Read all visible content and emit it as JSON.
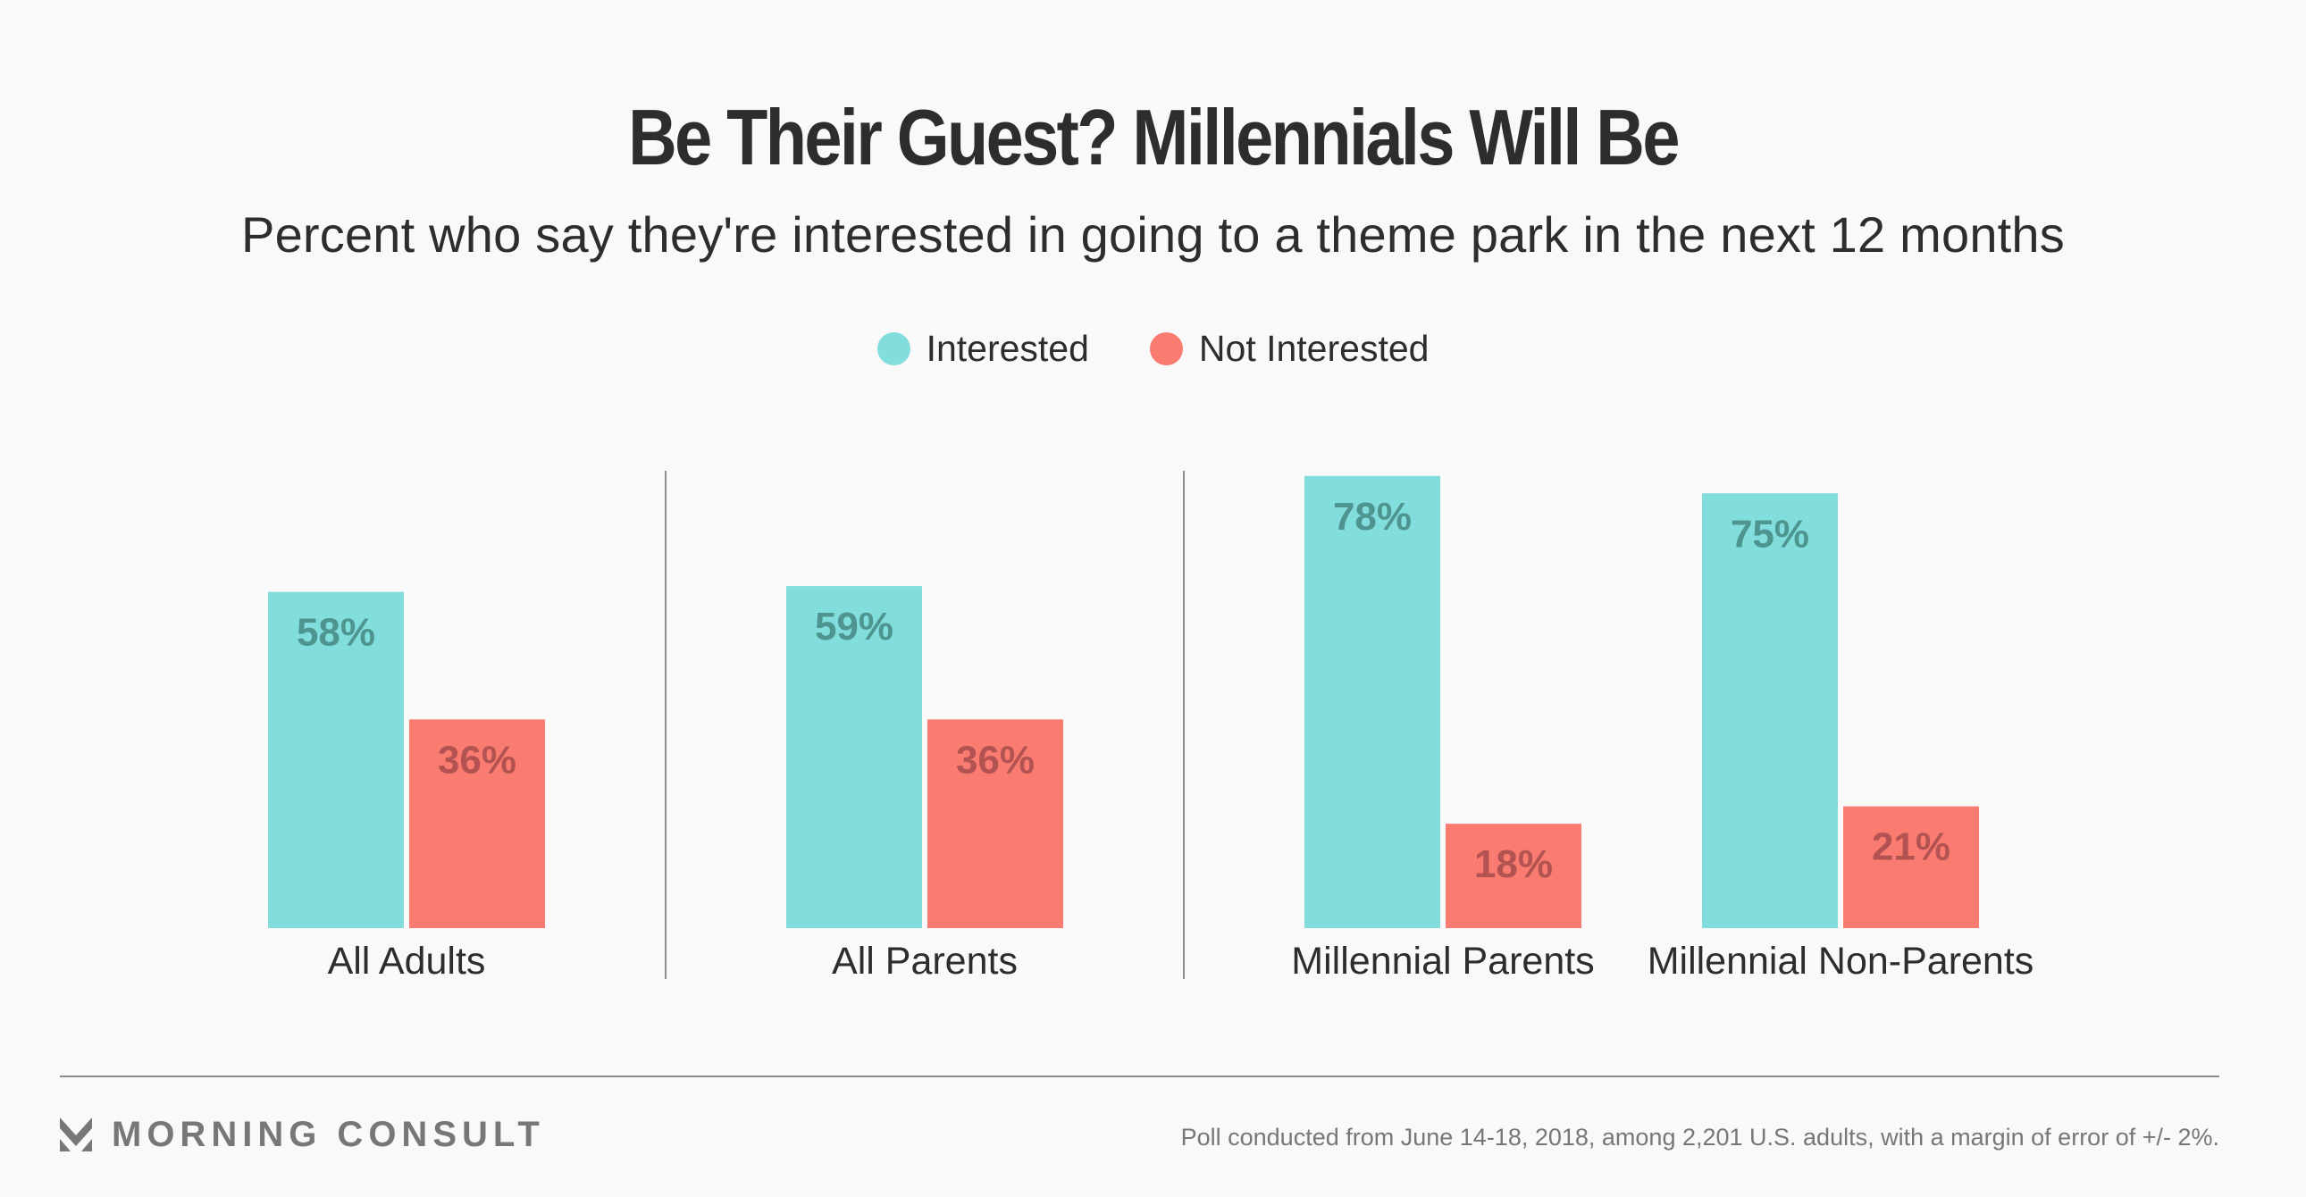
{
  "header": {
    "title": "Be Their Guest? Millennials Will Be",
    "subtitle": "Percent who say they're interested in going to a theme park in the next 12 months"
  },
  "legend": [
    {
      "label": "Interested",
      "color": "#82dedc"
    },
    {
      "label": "Not Interested",
      "color": "#fa7b70"
    }
  ],
  "chart_data": {
    "type": "bar",
    "title": "Be Their Guest? Millennials Will Be",
    "subtitle": "Percent who say they're interested in going to a theme park in the next 12 months",
    "xlabel": "",
    "ylabel": "",
    "ylim": [
      0,
      100
    ],
    "grid": false,
    "legend_position": "top-center",
    "categories": [
      "All Adults",
      "All Parents",
      "Millennial Parents",
      "Millennial Non-Parents"
    ],
    "series": [
      {
        "name": "Interested",
        "color": "#82dedc",
        "label_color": "#4e948f",
        "values": [
          58,
          59,
          78,
          75
        ],
        "labels": [
          "58%",
          "59%",
          "78%",
          "75%"
        ]
      },
      {
        "name": "Not Interested",
        "color": "#fa7b70",
        "label_color": "#b25352",
        "values": [
          36,
          36,
          18,
          21
        ],
        "labels": [
          "36%",
          "36%",
          "18%",
          "21%"
        ]
      }
    ],
    "group_dividers_after": [
      "All Adults",
      "All Parents"
    ]
  },
  "footer": {
    "brand": "MORNING CONSULT",
    "brand_icon": "morning-consult-logo-icon",
    "note": "Poll conducted from June 14-18, 2018, among 2,201 U.S. adults, with a margin of error of +/- 2%."
  }
}
